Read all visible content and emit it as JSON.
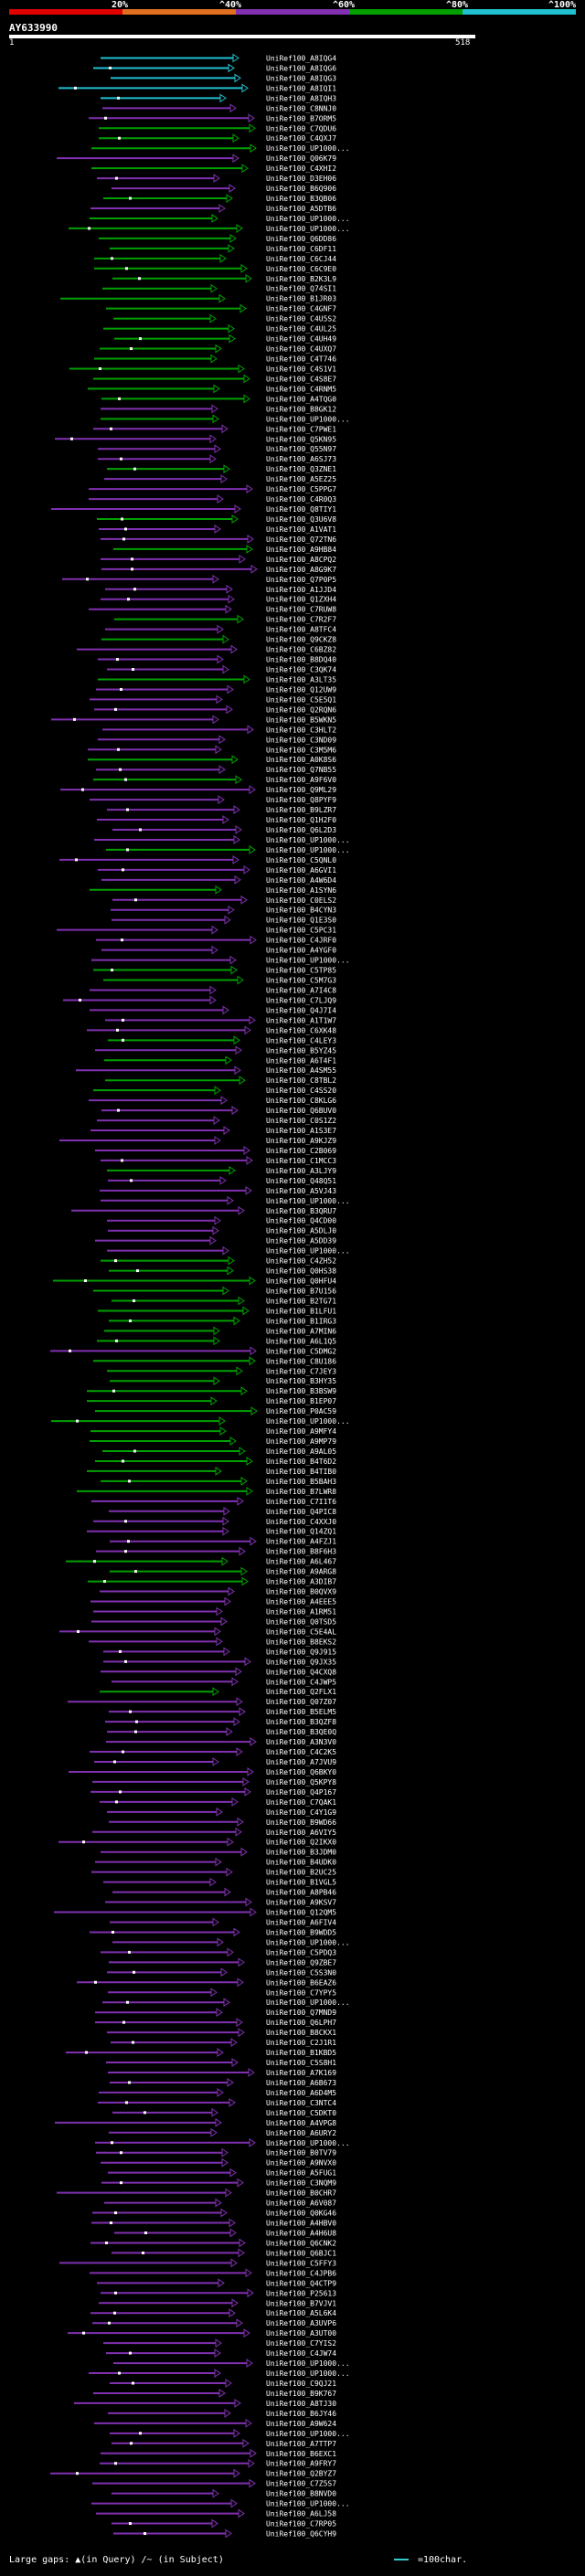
{
  "query": {
    "name": "AY633990",
    "start": "1",
    "end": "518"
  },
  "scale": {
    "ticks": [
      "20%",
      "^40%",
      "^60%",
      "^80%",
      "^100%"
    ],
    "colors": {
      "c1": "#e00000",
      "c2": "#e07020",
      "c3": "#8030b0",
      "c4": "#00a000",
      "c5": "#20c0d0"
    }
  },
  "legend": {
    "gaps_label": "Large gaps:",
    "query_gap": "▲(in Query)",
    "subject_gap": "/~ (in Subject)",
    "scale_label": "=100char."
  },
  "hits": [
    {
      "id": "UniRef100_A8IQG4",
      "c": "c5"
    },
    {
      "id": "UniRef100_A8IQG6",
      "c": "c5"
    },
    {
      "id": "UniRef100_A8IQG3",
      "c": "c5"
    },
    {
      "id": "UniRef100_A8IQI1",
      "c": "c5"
    },
    {
      "id": "UniRef100_A8IQH3",
      "c": "c5"
    },
    {
      "id": "UniRef100_C8NNJ0",
      "c": "c3"
    },
    {
      "id": "UniRef100_B7ORM5",
      "c": "c3"
    },
    {
      "id": "UniRef100_C7QDU6",
      "c": "c4"
    },
    {
      "id": "UniRef100_C4QXJ7",
      "c": "c4"
    },
    {
      "id": "UniRef100_UP1000...",
      "c": "c4"
    },
    {
      "id": "UniRef100_Q06K79",
      "c": "c3"
    },
    {
      "id": "UniRef100_C4XHI2",
      "c": "c4"
    },
    {
      "id": "UniRef100_D3EH06",
      "c": "c3"
    },
    {
      "id": "UniRef100_B6Q906",
      "c": "c3"
    },
    {
      "id": "UniRef100_B3QB06",
      "c": "c4"
    },
    {
      "id": "UniRef100_A5DTB6",
      "c": "c3"
    },
    {
      "id": "UniRef100_UP1000...",
      "c": "c4"
    },
    {
      "id": "UniRef100_UP1000...",
      "c": "c4"
    },
    {
      "id": "UniRef100_Q6DD86",
      "c": "c4"
    },
    {
      "id": "UniRef100_C6DF11",
      "c": "c4"
    },
    {
      "id": "UniRef100_C6CJ44",
      "c": "c4"
    },
    {
      "id": "UniRef100_C6C9E0",
      "c": "c4"
    },
    {
      "id": "UniRef100_B2K3L9",
      "c": "c4"
    },
    {
      "id": "UniRef100_Q74SI1",
      "c": "c4"
    },
    {
      "id": "UniRef100_B1JR03",
      "c": "c4"
    },
    {
      "id": "UniRef100_C4GNF7",
      "c": "c4"
    },
    {
      "id": "UniRef100_C4U5S2",
      "c": "c4"
    },
    {
      "id": "UniRef100_C4UL25",
      "c": "c4"
    },
    {
      "id": "UniRef100_C4UH49",
      "c": "c4"
    },
    {
      "id": "UniRef100_C4UXQ7",
      "c": "c4"
    },
    {
      "id": "UniRef100_C4T746",
      "c": "c4"
    },
    {
      "id": "UniRef100_C4S1V1",
      "c": "c4"
    },
    {
      "id": "UniRef100_C4S8E7",
      "c": "c4"
    },
    {
      "id": "UniRef100_C4RNM5",
      "c": "c4"
    },
    {
      "id": "UniRef100_A4TQG0",
      "c": "c4"
    },
    {
      "id": "UniRef100_B8GK12",
      "c": "c3"
    },
    {
      "id": "UniRef100_UP1000...",
      "c": "c4"
    },
    {
      "id": "UniRef100_C7PWE1",
      "c": "c3"
    },
    {
      "id": "UniRef100_Q5KN95",
      "c": "c3"
    },
    {
      "id": "UniRef100_Q55N97",
      "c": "c3"
    },
    {
      "id": "UniRef100_A6SJ73",
      "c": "c3"
    },
    {
      "id": "UniRef100_Q3ZNE1",
      "c": "c4"
    },
    {
      "id": "UniRef100_A5EZ25",
      "c": "c3"
    },
    {
      "id": "UniRef100_C5PPG7",
      "c": "c3"
    },
    {
      "id": "UniRef100_C4R0Q3",
      "c": "c3"
    },
    {
      "id": "UniRef100_Q8TIY1",
      "c": "c3"
    },
    {
      "id": "UniRef100_Q3U6V8",
      "c": "c4"
    },
    {
      "id": "UniRef100_A1VAT1",
      "c": "c3"
    },
    {
      "id": "UniRef100_Q72TN6",
      "c": "c3"
    },
    {
      "id": "UniRef100_A9HB84",
      "c": "c4"
    },
    {
      "id": "UniRef100_A8CPQ2",
      "c": "c3"
    },
    {
      "id": "UniRef100_A8G9K7",
      "c": "c3"
    },
    {
      "id": "UniRef100_Q7P0P5",
      "c": "c3"
    },
    {
      "id": "UniRef100_A1JJD4",
      "c": "c3"
    },
    {
      "id": "UniRef100_Q1ZXH4",
      "c": "c3"
    },
    {
      "id": "UniRef100_C7RUW8",
      "c": "c3"
    },
    {
      "id": "UniRef100_C7R2F7",
      "c": "c4"
    },
    {
      "id": "UniRef100_A8TFC4",
      "c": "c3"
    },
    {
      "id": "UniRef100_Q9CKZ8",
      "c": "c4"
    },
    {
      "id": "UniRef100_C6BZ82",
      "c": "c3"
    },
    {
      "id": "UniRef100_B8DQ40",
      "c": "c3"
    },
    {
      "id": "UniRef100_C3QK74",
      "c": "c3"
    },
    {
      "id": "UniRef100_A3LT35",
      "c": "c4"
    },
    {
      "id": "UniRef100_Q12UW9",
      "c": "c3"
    },
    {
      "id": "UniRef100_C5E5Q1",
      "c": "c3"
    },
    {
      "id": "UniRef100_Q2RQN6",
      "c": "c3"
    },
    {
      "id": "UniRef100_B5WKN5",
      "c": "c3"
    },
    {
      "id": "UniRef100_C3HLT2",
      "c": "c3"
    },
    {
      "id": "UniRef100_C3ND09",
      "c": "c3"
    },
    {
      "id": "UniRef100_C3M5M6",
      "c": "c3"
    },
    {
      "id": "UniRef100_A0K8S6",
      "c": "c4"
    },
    {
      "id": "UniRef100_Q7NB55",
      "c": "c3"
    },
    {
      "id": "UniRef100_A9F6V0",
      "c": "c4"
    },
    {
      "id": "UniRef100_Q9ML29",
      "c": "c3"
    },
    {
      "id": "UniRef100_Q8PYF9",
      "c": "c3"
    },
    {
      "id": "UniRef100_B9LZR7",
      "c": "c3"
    },
    {
      "id": "UniRef100_Q1H2F0",
      "c": "c3"
    },
    {
      "id": "UniRef100_Q6L2D3",
      "c": "c3"
    },
    {
      "id": "UniRef100_UP1000...",
      "c": "c3"
    },
    {
      "id": "UniRef100_UP1000...",
      "c": "c4"
    },
    {
      "id": "UniRef100_C5QNL0",
      "c": "c3"
    },
    {
      "id": "UniRef100_A6GVI1",
      "c": "c3"
    },
    {
      "id": "UniRef100_A4W6D4",
      "c": "c3"
    },
    {
      "id": "UniRef100_A1SYN6",
      "c": "c4"
    },
    {
      "id": "UniRef100_C0ELS2",
      "c": "c3"
    },
    {
      "id": "UniRef100_B4CYN3",
      "c": "c3"
    },
    {
      "id": "UniRef100_Q1E3S0",
      "c": "c3"
    },
    {
      "id": "UniRef100_C5PC31",
      "c": "c3"
    },
    {
      "id": "UniRef100_C4JRF0",
      "c": "c3"
    },
    {
      "id": "UniRef100_A4YGF0",
      "c": "c3"
    },
    {
      "id": "UniRef100_UP1000...",
      "c": "c3"
    },
    {
      "id": "UniRef100_C5TP85",
      "c": "c4"
    },
    {
      "id": "UniRef100_C5M7G3",
      "c": "c4"
    },
    {
      "id": "UniRef100_A7I4C8",
      "c": "c3"
    },
    {
      "id": "UniRef100_C7LJQ9",
      "c": "c3"
    },
    {
      "id": "UniRef100_Q4J7I4",
      "c": "c3"
    },
    {
      "id": "UniRef100_A1T1W7",
      "c": "c3"
    },
    {
      "id": "UniRef100_C6XK48",
      "c": "c3"
    },
    {
      "id": "UniRef100_C4LEY3",
      "c": "c4"
    },
    {
      "id": "UniRef100_B5YZ45",
      "c": "c3"
    },
    {
      "id": "UniRef100_A6T4F1",
      "c": "c4"
    },
    {
      "id": "UniRef100_A4SM55",
      "c": "c3"
    },
    {
      "id": "UniRef100_C8TBL2",
      "c": "c4"
    },
    {
      "id": "UniRef100_C4SS20",
      "c": "c4"
    },
    {
      "id": "UniRef100_C8KLG6",
      "c": "c3"
    },
    {
      "id": "UniRef100_Q6BUV0",
      "c": "c3"
    },
    {
      "id": "UniRef100_C0S1Z2",
      "c": "c3"
    },
    {
      "id": "UniRef100_A1S3E7",
      "c": "c3"
    },
    {
      "id": "UniRef100_A9KJZ9",
      "c": "c3"
    },
    {
      "id": "UniRef100_C2B069",
      "c": "c3"
    },
    {
      "id": "UniRef100_C1MCC3",
      "c": "c3"
    },
    {
      "id": "UniRef100_A3LJY9",
      "c": "c4"
    },
    {
      "id": "UniRef100_Q48Q51",
      "c": "c3"
    },
    {
      "id": "UniRef100_A5VJ43",
      "c": "c3"
    },
    {
      "id": "UniRef100_UP1000...",
      "c": "c3"
    },
    {
      "id": "UniRef100_B3QRU7",
      "c": "c3"
    },
    {
      "id": "UniRef100_Q4CD00",
      "c": "c3"
    },
    {
      "id": "UniRef100_A5DLJ0",
      "c": "c3"
    },
    {
      "id": "UniRef100_A5DD39",
      "c": "c3"
    },
    {
      "id": "UniRef100_UP1000...",
      "c": "c3"
    },
    {
      "id": "UniRef100_C4ZH52",
      "c": "c4"
    },
    {
      "id": "UniRef100_Q0HS38",
      "c": "c4"
    },
    {
      "id": "UniRef100_Q0HFU4",
      "c": "c4"
    },
    {
      "id": "UniRef100_B7U156",
      "c": "c4"
    },
    {
      "id": "UniRef100_B2TG71",
      "c": "c4"
    },
    {
      "id": "UniRef100_B1LFU1",
      "c": "c4"
    },
    {
      "id": "UniRef100_B1IRG3",
      "c": "c4"
    },
    {
      "id": "UniRef100_A7MIN6",
      "c": "c4"
    },
    {
      "id": "UniRef100_A6L1Q5",
      "c": "c4"
    },
    {
      "id": "UniRef100_C5DMG2",
      "c": "c3"
    },
    {
      "id": "UniRef100_C8U186",
      "c": "c4"
    },
    {
      "id": "UniRef100_C7JEY3",
      "c": "c4"
    },
    {
      "id": "UniRef100_B3HY35",
      "c": "c4"
    },
    {
      "id": "UniRef100_B3BSW9",
      "c": "c4"
    },
    {
      "id": "UniRef100_B1EP07",
      "c": "c4"
    },
    {
      "id": "UniRef100_P0AC59",
      "c": "c4"
    },
    {
      "id": "UniRef100_UP1000...",
      "c": "c4"
    },
    {
      "id": "UniRef100_A9MFY4",
      "c": "c4"
    },
    {
      "id": "UniRef100_A9MP79",
      "c": "c4"
    },
    {
      "id": "UniRef100_A9AL05",
      "c": "c4"
    },
    {
      "id": "UniRef100_B4T6D2",
      "c": "c4"
    },
    {
      "id": "UniRef100_B4TIB0",
      "c": "c4"
    },
    {
      "id": "UniRef100_B5BAH3",
      "c": "c4"
    },
    {
      "id": "UniRef100_B7LWR8",
      "c": "c4"
    },
    {
      "id": "UniRef100_C7I1T6",
      "c": "c3"
    },
    {
      "id": "UniRef100_Q4PIC8",
      "c": "c3"
    },
    {
      "id": "UniRef100_C4XXJ0",
      "c": "c3"
    },
    {
      "id": "UniRef100_Q14ZQ1",
      "c": "c3"
    },
    {
      "id": "UniRef100_A4FZJ1",
      "c": "c3"
    },
    {
      "id": "UniRef100_B8F6H3",
      "c": "c3"
    },
    {
      "id": "UniRef100_A6L467",
      "c": "c4"
    },
    {
      "id": "UniRef100_A9ARG8",
      "c": "c4"
    },
    {
      "id": "UniRef100_A3DIB7",
      "c": "c4"
    },
    {
      "id": "UniRef100_B0QVX9",
      "c": "c3"
    },
    {
      "id": "UniRef100_A4EEE5",
      "c": "c3"
    },
    {
      "id": "UniRef100_A1RM51",
      "c": "c3"
    },
    {
      "id": "UniRef100_Q0TSD5",
      "c": "c3"
    },
    {
      "id": "UniRef100_C5E4AL",
      "c": "c3"
    },
    {
      "id": "UniRef100_B8EKS2",
      "c": "c3"
    },
    {
      "id": "UniRef100_Q9J915",
      "c": "c3"
    },
    {
      "id": "UniRef100_Q9JX35",
      "c": "c3"
    },
    {
      "id": "UniRef100_Q4CXQ8",
      "c": "c3"
    },
    {
      "id": "UniRef100_C4JWP5",
      "c": "c3"
    },
    {
      "id": "UniRef100_Q2FLX1",
      "c": "c4"
    },
    {
      "id": "UniRef100_Q07Z07",
      "c": "c3"
    },
    {
      "id": "UniRef100_B5ELM5",
      "c": "c3"
    },
    {
      "id": "UniRef100_B3QZF8",
      "c": "c3"
    },
    {
      "id": "UniRef100_B3QE0Q",
      "c": "c3"
    },
    {
      "id": "UniRef100_A3N3V0",
      "c": "c3"
    },
    {
      "id": "UniRef100_C4C2K5",
      "c": "c3"
    },
    {
      "id": "UniRef100_A7JVU9",
      "c": "c3"
    },
    {
      "id": "UniRef100_Q6BKY0",
      "c": "c3"
    },
    {
      "id": "UniRef100_Q5KPY8",
      "c": "c3"
    },
    {
      "id": "UniRef100_Q4P167",
      "c": "c3"
    },
    {
      "id": "UniRef100_C7QAK1",
      "c": "c3"
    },
    {
      "id": "UniRef100_C4Y1G9",
      "c": "c3"
    },
    {
      "id": "UniRef100_B9WD66",
      "c": "c3"
    },
    {
      "id": "UniRef100_A6VIY5",
      "c": "c3"
    },
    {
      "id": "UniRef100_Q2IKX0",
      "c": "c3"
    },
    {
      "id": "UniRef100_B3JDM0",
      "c": "c3"
    },
    {
      "id": "UniRef100_B4UDK0",
      "c": "c3"
    },
    {
      "id": "UniRef100_B2UC25",
      "c": "c3"
    },
    {
      "id": "UniRef100_B1VGL5",
      "c": "c3"
    },
    {
      "id": "UniRef100_A8PB46",
      "c": "c3"
    },
    {
      "id": "UniRef100_A9KSV7",
      "c": "c3"
    },
    {
      "id": "UniRef100_Q12QM5",
      "c": "c3"
    },
    {
      "id": "UniRef100_A6FIV4",
      "c": "c3"
    },
    {
      "id": "UniRef100_B9WDD5",
      "c": "c3"
    },
    {
      "id": "UniRef100_UP1000...",
      "c": "c3"
    },
    {
      "id": "UniRef100_C5PDQ3",
      "c": "c3"
    },
    {
      "id": "UniRef100_Q9ZBE7",
      "c": "c3"
    },
    {
      "id": "UniRef100_C5S3N0",
      "c": "c3"
    },
    {
      "id": "UniRef100_B6EAZ6",
      "c": "c3"
    },
    {
      "id": "UniRef100_C7YPY5",
      "c": "c3"
    },
    {
      "id": "UniRef100_UP1000...",
      "c": "c3"
    },
    {
      "id": "UniRef100_Q7MND9",
      "c": "c3"
    },
    {
      "id": "UniRef100_Q6LPH7",
      "c": "c3"
    },
    {
      "id": "UniRef100_B8CKX1",
      "c": "c3"
    },
    {
      "id": "UniRef100_C2J1R1",
      "c": "c3"
    },
    {
      "id": "UniRef100_B1KBD5",
      "c": "c3"
    },
    {
      "id": "UniRef100_C5S8H1",
      "c": "c3"
    },
    {
      "id": "UniRef100_A7K169",
      "c": "c3"
    },
    {
      "id": "UniRef100_A6B673",
      "c": "c3"
    },
    {
      "id": "UniRef100_A6D4M5",
      "c": "c3"
    },
    {
      "id": "UniRef100_C3NTC4",
      "c": "c3"
    },
    {
      "id": "UniRef100_C5DKT0",
      "c": "c3"
    },
    {
      "id": "UniRef100_A4VPG8",
      "c": "c3"
    },
    {
      "id": "UniRef100_A6URY2",
      "c": "c3"
    },
    {
      "id": "UniRef100_UP1000...",
      "c": "c3"
    },
    {
      "id": "UniRef100_B0TV79",
      "c": "c3"
    },
    {
      "id": "UniRef100_A9NVX0",
      "c": "c3"
    },
    {
      "id": "UniRef100_A5FUG1",
      "c": "c3"
    },
    {
      "id": "UniRef100_C3NQM9",
      "c": "c3"
    },
    {
      "id": "UniRef100_B0CHR7",
      "c": "c3"
    },
    {
      "id": "UniRef100_A6V087",
      "c": "c3"
    },
    {
      "id": "UniRef100_Q0KG46",
      "c": "c3"
    },
    {
      "id": "UniRef100_A4HBV0",
      "c": "c3"
    },
    {
      "id": "UniRef100_A4H6U8",
      "c": "c3"
    },
    {
      "id": "UniRef100_Q6CNK2",
      "c": "c3"
    },
    {
      "id": "UniRef100_Q6BJC1",
      "c": "c3"
    },
    {
      "id": "UniRef100_C5FFY3",
      "c": "c3"
    },
    {
      "id": "UniRef100_C4JPB6",
      "c": "c3"
    },
    {
      "id": "UniRef100_Q4CTP9",
      "c": "c3"
    },
    {
      "id": "UniRef100_P25613",
      "c": "c3"
    },
    {
      "id": "UniRef100_B7VJV1",
      "c": "c3"
    },
    {
      "id": "UniRef100_A5L6K4",
      "c": "c3"
    },
    {
      "id": "UniRef100_A3UVP6",
      "c": "c3"
    },
    {
      "id": "UniRef100_A3UT00",
      "c": "c3"
    },
    {
      "id": "UniRef100_C7YIS2",
      "c": "c3"
    },
    {
      "id": "UniRef100_C4JW74",
      "c": "c3"
    },
    {
      "id": "UniRef100_UP1000...",
      "c": "c3"
    },
    {
      "id": "UniRef100_UP1000...",
      "c": "c3"
    },
    {
      "id": "UniRef100_C9QJ21",
      "c": "c3"
    },
    {
      "id": "UniRef100_B9K767",
      "c": "c3"
    },
    {
      "id": "UniRef100_A8TJ30",
      "c": "c3"
    },
    {
      "id": "UniRef100_B6JY46",
      "c": "c3"
    },
    {
      "id": "UniRef100_A9W624",
      "c": "c3"
    },
    {
      "id": "UniRef100_UP1000...",
      "c": "c3"
    },
    {
      "id": "UniRef100_A7TTP7",
      "c": "c3"
    },
    {
      "id": "UniRef100_B6EXC1",
      "c": "c3"
    },
    {
      "id": "UniRef100_A9FRY7",
      "c": "c3"
    },
    {
      "id": "UniRef100_Q2BYZ7",
      "c": "c3"
    },
    {
      "id": "UniRef100_C7Z5S7",
      "c": "c3"
    },
    {
      "id": "UniRef100_B8NVD0",
      "c": "c3"
    },
    {
      "id": "UniRef100_UP1000...",
      "c": "c3"
    },
    {
      "id": "UniRef100_A6LJ58",
      "c": "c3"
    },
    {
      "id": "UniRef100_C7RP05",
      "c": "c3"
    },
    {
      "id": "UniRef100_Q6CYH9",
      "c": "c3"
    }
  ]
}
